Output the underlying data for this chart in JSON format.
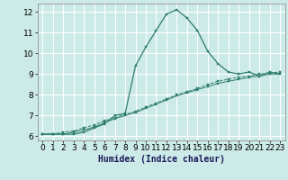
{
  "xlabel": "Humidex (Indice chaleur)",
  "ylabel": "",
  "background_color": "#cceae7",
  "grid_color": "#ffffff",
  "line_color": "#2e7d6e",
  "x_values": [
    0,
    1,
    2,
    3,
    4,
    5,
    6,
    7,
    8,
    9,
    10,
    11,
    12,
    13,
    14,
    15,
    16,
    17,
    18,
    19,
    20,
    21,
    22,
    23
  ],
  "curve1_y": [
    6.1,
    6.1,
    6.1,
    6.1,
    6.2,
    6.4,
    6.6,
    7.0,
    7.1,
    9.4,
    10.3,
    11.1,
    11.9,
    12.1,
    11.7,
    11.1,
    10.1,
    9.5,
    9.1,
    9.0,
    9.1,
    8.9,
    9.1,
    9.0
  ],
  "curve2_y": [
    6.1,
    6.1,
    6.1,
    6.2,
    6.3,
    6.45,
    6.65,
    6.85,
    7.0,
    7.15,
    7.35,
    7.55,
    7.75,
    7.95,
    8.1,
    8.25,
    8.4,
    8.55,
    8.65,
    8.75,
    8.85,
    8.9,
    9.0,
    9.0
  ],
  "curve3_y": [
    6.1,
    6.1,
    6.2,
    6.25,
    6.4,
    6.55,
    6.75,
    6.9,
    7.05,
    7.2,
    7.4,
    7.6,
    7.8,
    8.0,
    8.15,
    8.3,
    8.5,
    8.65,
    8.75,
    8.85,
    8.9,
    9.0,
    9.05,
    9.1
  ],
  "ylim": [
    5.8,
    12.4
  ],
  "xlim": [
    -0.5,
    23.5
  ],
  "yticks": [
    6,
    7,
    8,
    9,
    10,
    11,
    12
  ],
  "xticks": [
    0,
    1,
    2,
    3,
    4,
    5,
    6,
    7,
    8,
    9,
    10,
    11,
    12,
    13,
    14,
    15,
    16,
    17,
    18,
    19,
    20,
    21,
    22,
    23
  ],
  "tick_fontsize": 6.5,
  "xlabel_fontsize": 7.0,
  "marker_size": 2.0
}
